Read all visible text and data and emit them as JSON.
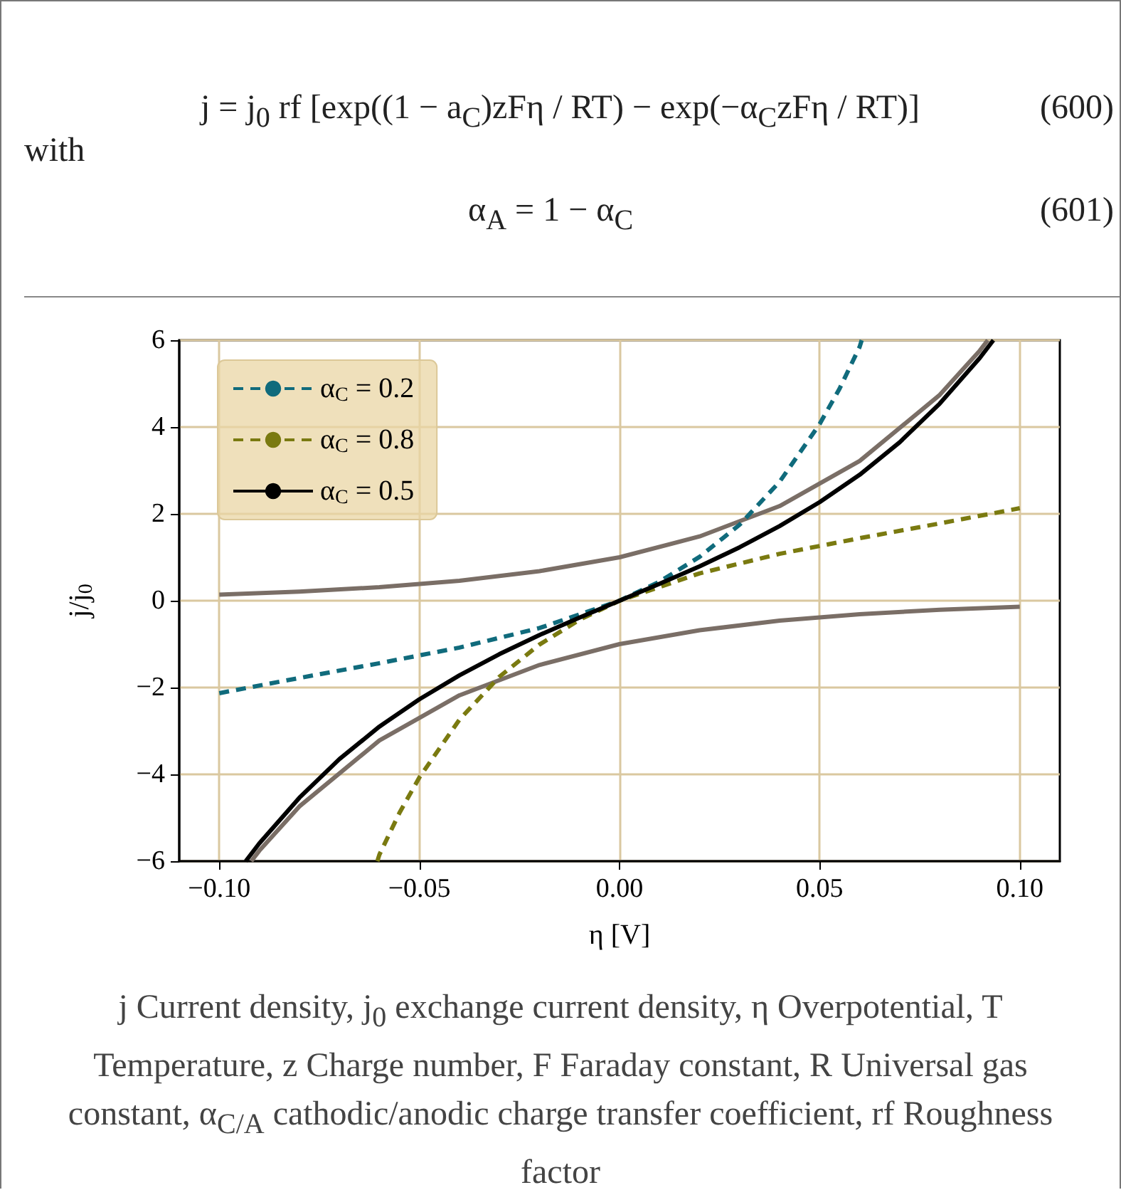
{
  "chart_data": {
    "type": "line",
    "annotations": [
      "j = j$_{0}$ rf [exp((1 − a$_{C}$)zFη / RT) − exp(−α$_{C}$zFη / RT)]",
      "(600)",
      "with",
      "α$_{A}$ = 1 − α$_{C}$",
      "(601)",
      "j Current density, j$_{0}$ exchange current density, η Overpotential, T Temperature, z Charge number, F Faraday constant, R Universal gas constant, α$_{C/A}$ cathodic/anodic charge transfer coefficient, rf Roughness factor"
    ],
    "xlabel": "η [V]",
    "ylabel": "j/j$_{0}$",
    "xlim": [
      -0.11,
      0.11
    ],
    "ylim": [
      -6,
      6
    ],
    "xticks": [
      {
        "value": -0.1,
        "label": "−0.10"
      },
      {
        "value": -0.05,
        "label": "−0.05"
      },
      {
        "value": 0,
        "label": "0.00"
      },
      {
        "value": 0.05,
        "label": "0.05"
      },
      {
        "value": 0.1,
        "label": "0.10"
      }
    ],
    "yticks": [
      {
        "value": -6,
        "label": "−6"
      },
      {
        "value": -4,
        "label": "−4"
      },
      {
        "value": -2,
        "label": "−2"
      },
      {
        "value": 0,
        "label": "0"
      },
      {
        "value": 2,
        "label": "2"
      },
      {
        "value": 4,
        "label": "4"
      },
      {
        "value": 6,
        "label": "6"
      }
    ],
    "grid": true,
    "legend": "top left",
    "marker": "none",
    "series": [
      {
        "color": "#7a6e66",
        "line_style": "solid",
        "x": [
          -0.1,
          -0.08,
          -0.06,
          -0.04,
          -0.02,
          0,
          0.02,
          0.04,
          0.06,
          0.08,
          0.09,
          0.092
        ],
        "values": [
          0.14,
          0.21,
          0.31,
          0.46,
          0.68,
          1.0,
          1.48,
          2.18,
          3.22,
          4.74,
          5.76,
          6.0
        ]
      },
      {
        "color": "#7a6e66",
        "line_style": "solid",
        "x": [
          -0.092,
          -0.09,
          -0.08,
          -0.06,
          -0.04,
          -0.02,
          0,
          0.02,
          0.04,
          0.06,
          0.08,
          0.1
        ],
        "values": [
          -6.0,
          -5.76,
          -4.74,
          -3.22,
          -2.18,
          -1.48,
          -1.0,
          -0.68,
          -0.46,
          -0.31,
          -0.21,
          -0.14
        ]
      },
      {
        "name": "α$_{C}$ = 0.2",
        "color": "#106b7c",
        "line_style": "dashed",
        "x": [
          -0.1,
          -0.08,
          -0.06,
          -0.04,
          -0.02,
          0,
          0.01,
          0.02,
          0.03,
          0.04,
          0.05,
          0.055,
          0.06,
          0.0605
        ],
        "values": [
          -2.13,
          -1.78,
          -1.44,
          -1.08,
          -0.63,
          0,
          0.44,
          1.01,
          1.75,
          2.74,
          4.07,
          4.89,
          5.85,
          6.0
        ]
      },
      {
        "name": "α$_{C}$ = 0.8",
        "color": "#7a7a10",
        "line_style": "dashed",
        "x": [
          -0.0605,
          -0.06,
          -0.055,
          -0.05,
          -0.04,
          -0.03,
          -0.02,
          -0.01,
          0,
          0.02,
          0.04,
          0.06,
          0.08,
          0.1
        ],
        "values": [
          -6.0,
          -5.85,
          -4.89,
          -4.07,
          -2.74,
          -1.75,
          -1.01,
          -0.44,
          0,
          0.63,
          1.08,
          1.44,
          1.78,
          2.13
        ]
      },
      {
        "name": "α$_{C}$ = 0.5",
        "color": "#000000",
        "line_style": "solid",
        "x": [
          -0.0934,
          -0.09,
          -0.08,
          -0.07,
          -0.06,
          -0.05,
          -0.04,
          -0.03,
          -0.02,
          -0.01,
          0,
          0.01,
          0.02,
          0.03,
          0.04,
          0.05,
          0.06,
          0.07,
          0.08,
          0.09,
          0.0934
        ],
        "values": [
          -6.0,
          -5.59,
          -4.54,
          -3.65,
          -2.9,
          -2.27,
          -1.72,
          -1.23,
          -0.79,
          -0.39,
          0,
          0.39,
          0.79,
          1.23,
          1.72,
          2.27,
          2.9,
          3.65,
          4.54,
          5.59,
          6.0
        ]
      }
    ]
  }
}
